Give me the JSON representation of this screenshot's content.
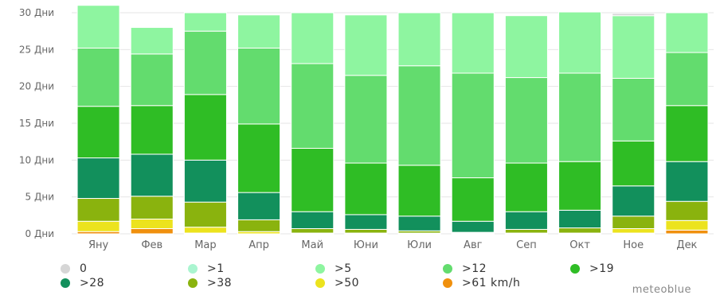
{
  "chart_data": {
    "type": "bar",
    "stacked": true,
    "categories": [
      "Яну",
      "Фев",
      "Мар",
      "Апр",
      "Май",
      "Юни",
      "Юли",
      "Авг",
      "Сеп",
      "Окт",
      "Ное",
      "Дек"
    ],
    "y_ticks": [
      "0 Дни",
      "5 Дни",
      "10 Дни",
      "15 Дни",
      "20 Дни",
      "25 Дни",
      "30 Дни"
    ],
    "ylim": [
      0,
      30
    ],
    "grid": true,
    "legend_position": "bottom",
    "series": [
      {
        "name": "0",
        "color": "#d6d6d6",
        "values": [
          0,
          0,
          0,
          0,
          0,
          0,
          0,
          0,
          0,
          0,
          0.3,
          0
        ]
      },
      {
        "name": ">1",
        "color": "#aaf5d0",
        "values": [
          0,
          0,
          0,
          0,
          0,
          0,
          0,
          0,
          0,
          0,
          0,
          0
        ]
      },
      {
        "name": ">5",
        "color": "#8ef5a0",
        "values": [
          5.8,
          3.6,
          2.5,
          4.5,
          6.9,
          8.2,
          7.2,
          8.2,
          8.4,
          8.3,
          8.5,
          5.4
        ]
      },
      {
        "name": ">12",
        "color": "#63dc6e",
        "values": [
          7.9,
          7.0,
          8.6,
          10.3,
          11.5,
          11.9,
          13.5,
          14.2,
          11.6,
          12.0,
          8.5,
          7.2
        ]
      },
      {
        "name": ">19",
        "color": "#2fbd25",
        "values": [
          7.0,
          6.6,
          8.9,
          9.3,
          8.6,
          7.0,
          6.9,
          5.9,
          6.6,
          6.6,
          6.1,
          7.6
        ]
      },
      {
        "name": ">28",
        "color": "#12905c",
        "values": [
          5.5,
          5.7,
          5.7,
          3.7,
          2.3,
          2.0,
          2.0,
          1.5,
          2.4,
          2.4,
          4.1,
          5.4
        ]
      },
      {
        "name": ">38",
        "color": "#8ab30e",
        "values": [
          3.1,
          3.1,
          3.4,
          1.6,
          0.6,
          0.5,
          0.3,
          0.1,
          0.5,
          0.7,
          1.7,
          2.6
        ]
      },
      {
        "name": ">50",
        "color": "#ece31e",
        "values": [
          1.4,
          1.3,
          0.8,
          0.3,
          0.1,
          0.1,
          0.1,
          0.1,
          0.1,
          0.1,
          0.6,
          1.3
        ]
      },
      {
        "name": ">61 km/h",
        "color": "#f0900d",
        "values": [
          0.3,
          0.7,
          0.1,
          0,
          0,
          0,
          0,
          0,
          0,
          0,
          0.1,
          0.5
        ]
      }
    ]
  },
  "legend_rows": [
    [
      0,
      1,
      2,
      3,
      4
    ],
    [
      5,
      6,
      7,
      8
    ]
  ],
  "credit": "meteoblue"
}
